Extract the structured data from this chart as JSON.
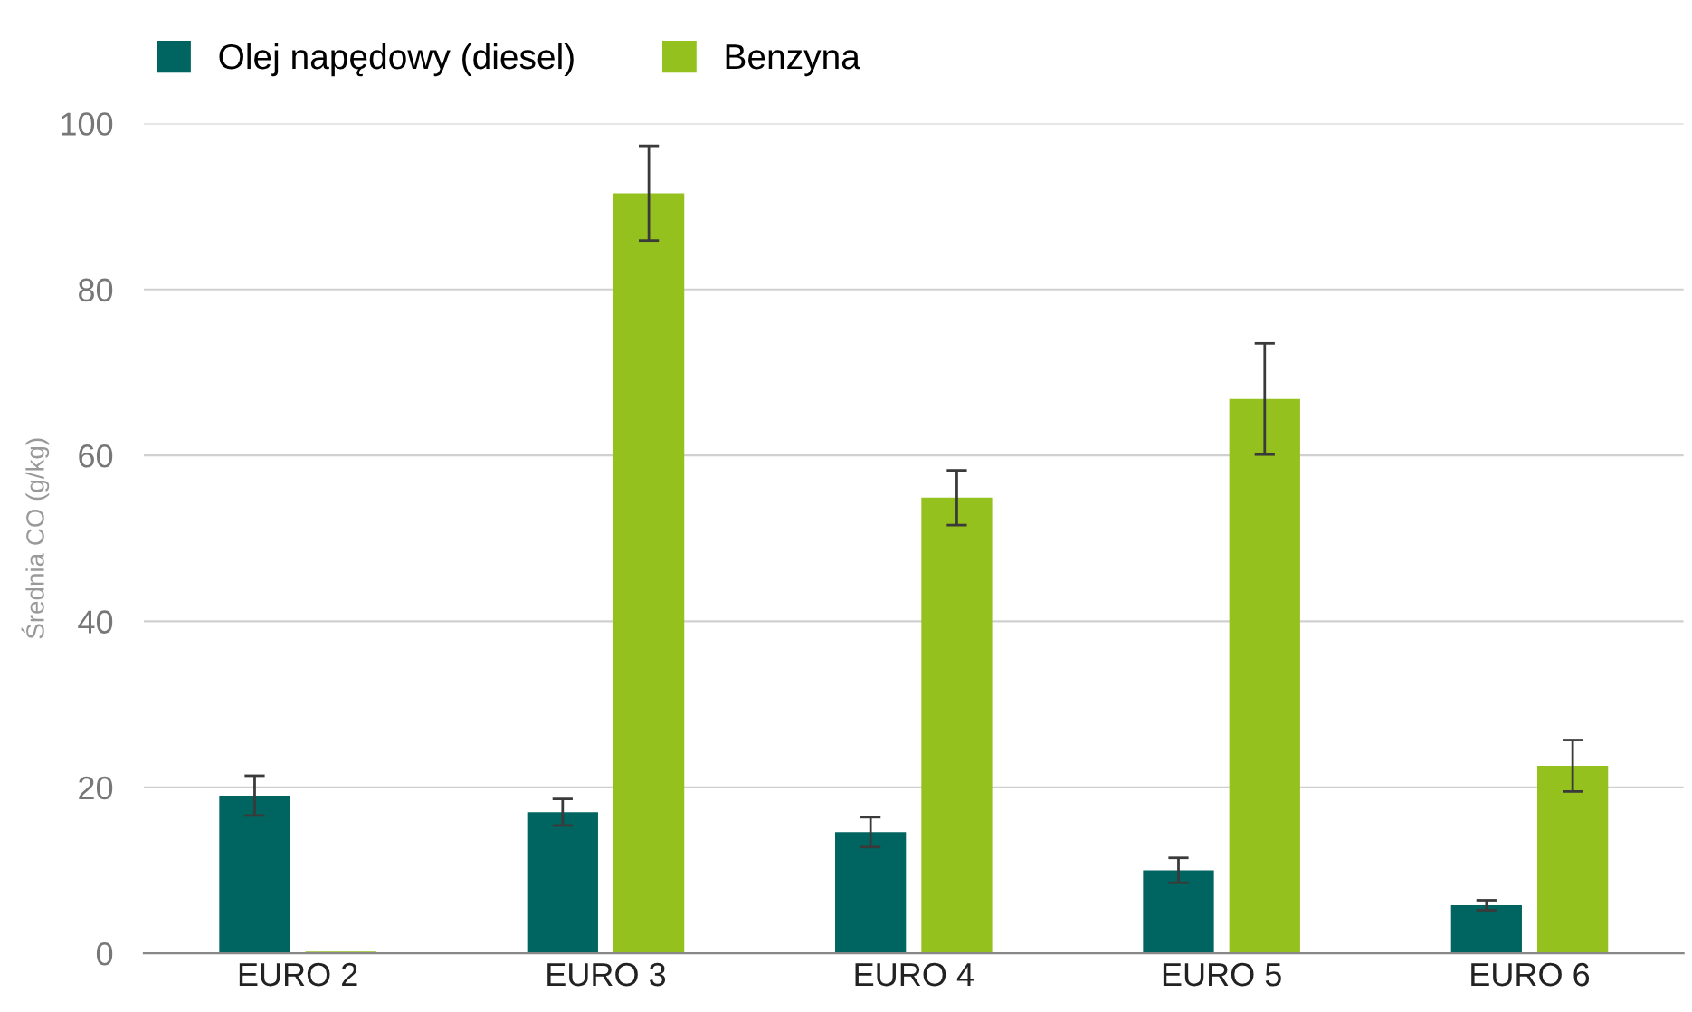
{
  "chart_data": {
    "type": "bar",
    "ylabel": "Średnia CO (g/kg)",
    "categories": [
      "EURO 2",
      "EURO 3",
      "EURO 4",
      "EURO 5",
      "EURO 6"
    ],
    "series": [
      {
        "name": "Olej napędowy (diesel)",
        "color": "#006560",
        "values": [
          19.0,
          17.0,
          14.6,
          10.0,
          5.8
        ],
        "errors": [
          2.4,
          1.6,
          1.8,
          1.5,
          0.6
        ]
      },
      {
        "name": "Benzyna",
        "color": "#95c11f",
        "values": [
          0.2,
          91.6,
          54.9,
          66.8,
          22.6
        ],
        "errors": [
          null,
          5.7,
          3.3,
          6.7,
          3.1
        ]
      }
    ],
    "ylim": [
      0,
      100
    ],
    "yticks": [
      0,
      20,
      40,
      60,
      80,
      100
    ],
    "grid": "y",
    "legend": "top left"
  }
}
